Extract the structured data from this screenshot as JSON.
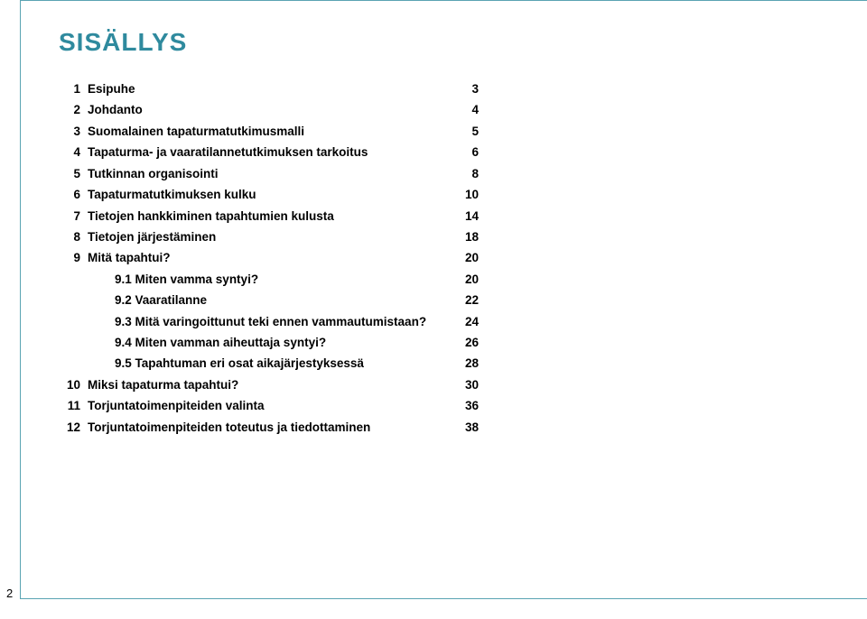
{
  "title": "SISÄLLYS",
  "page_num": "2",
  "colors": {
    "accent": "#2f8a9e",
    "border": "#5aa4b3",
    "text": "#000000",
    "background": "#ffffff"
  },
  "toc": [
    {
      "num": "1",
      "label": "Esipuhe",
      "page": "3",
      "type": "main"
    },
    {
      "num": "2",
      "label": "Johdanto",
      "page": "4",
      "type": "main"
    },
    {
      "num": "3",
      "label": "Suomalainen tapaturmatutkimusmalli",
      "page": "5",
      "type": "main"
    },
    {
      "num": "4",
      "label": "Tapaturma- ja vaaratilannetutkimuksen tarkoitus",
      "page": "6",
      "type": "main"
    },
    {
      "num": "5",
      "label": "Tutkinnan organisointi",
      "page": "8",
      "type": "main"
    },
    {
      "num": "6",
      "label": "Tapaturmatutkimuksen kulku",
      "page": "10",
      "type": "main"
    },
    {
      "num": "7",
      "label": "Tietojen hankkiminen tapahtumien kulusta",
      "page": "14",
      "type": "main"
    },
    {
      "num": "8",
      "label": "Tietojen järjestäminen",
      "page": "18",
      "type": "main"
    },
    {
      "num": "9",
      "label": "Mitä tapahtui?",
      "page": "20",
      "type": "main"
    },
    {
      "num": "",
      "label": "9.1 Miten vamma syntyi?",
      "page": "20",
      "type": "sub"
    },
    {
      "num": "",
      "label": "9.2 Vaaratilanne",
      "page": "22",
      "type": "sub"
    },
    {
      "num": "",
      "label": "9.3 Mitä varingoittunut teki ennen vammautumistaan?",
      "page": "24",
      "type": "sub"
    },
    {
      "num": "",
      "label": "9.4 Miten vamman aiheuttaja syntyi?",
      "page": "26",
      "type": "sub"
    },
    {
      "num": "",
      "label": "9.5 Tapahtuman eri osat aikajärjestyksessä",
      "page": "28",
      "type": "sub"
    },
    {
      "num": "10",
      "label": "Miksi tapaturma tapahtui?",
      "page": "30",
      "type": "main"
    },
    {
      "num": "11",
      "label": "Torjuntatoimenpiteiden valinta",
      "page": "36",
      "type": "main"
    },
    {
      "num": "12",
      "label": "Torjuntatoimenpiteiden toteutus ja tiedottaminen",
      "page": "38",
      "type": "main"
    }
  ]
}
